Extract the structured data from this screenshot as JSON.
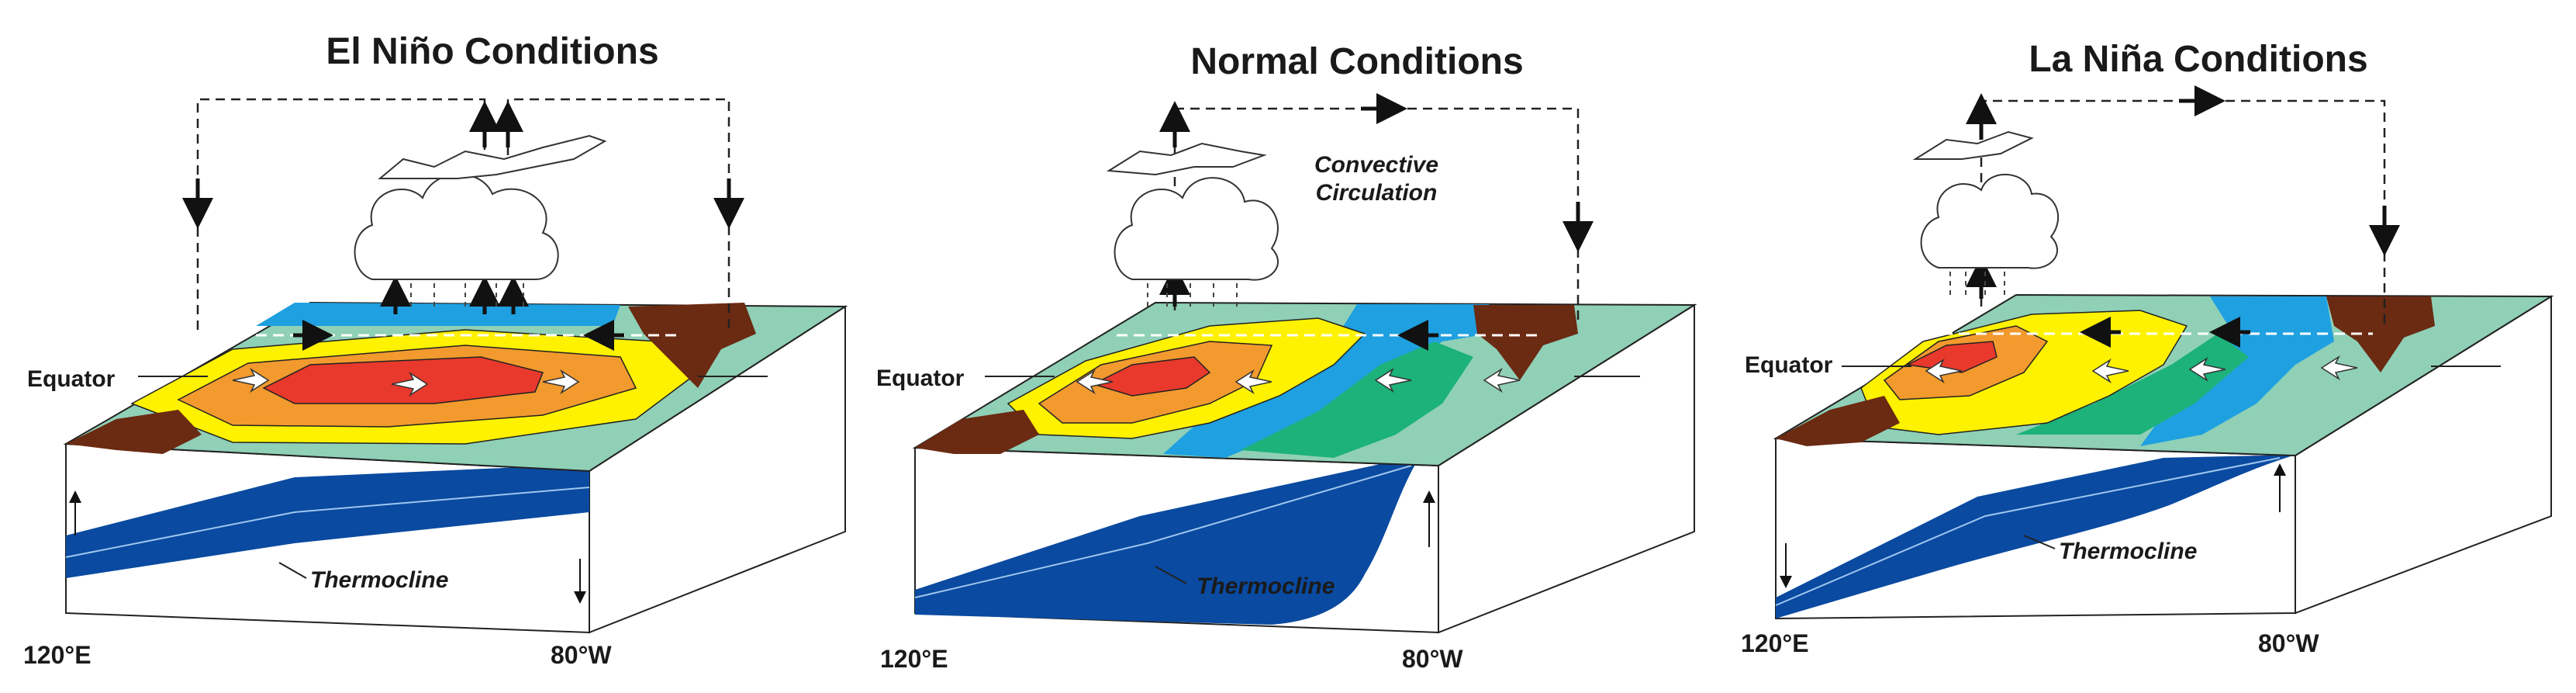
{
  "panels": [
    {
      "title": "El Niño Conditions",
      "equator_label": "Equator",
      "thermocline_label": "Thermocline",
      "lon_west": "120°E",
      "lon_east": "80°W"
    },
    {
      "title": "Normal Conditions",
      "equator_label": "Equator",
      "thermocline_label": "Thermocline",
      "circulation_label_1": "Convective",
      "circulation_label_2": "Circulation",
      "lon_west": "120°E",
      "lon_east": "80°W"
    },
    {
      "title": "La Niña Conditions",
      "equator_label": "Equator",
      "thermocline_label": "Thermocline",
      "lon_west": "120°E",
      "lon_east": "80°W"
    }
  ],
  "colors": {
    "red": "#e8392c",
    "orange": "#f29a2e",
    "yellow": "#fff200",
    "teal": "#8fd0b7",
    "green": "#1cb27a",
    "blue": "#1fa0e0",
    "deep_blue": "#0a4aa0",
    "land": "#6b2a12",
    "outline": "#222222"
  }
}
